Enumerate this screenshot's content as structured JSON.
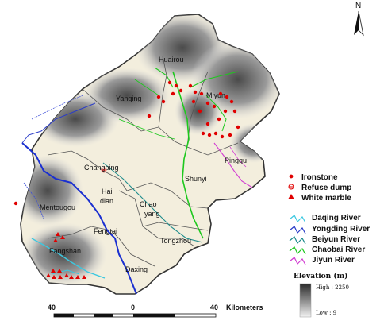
{
  "north_label": "N",
  "districts": [
    {
      "id": "huairou",
      "label": "Huairou"
    },
    {
      "id": "yanqing",
      "label": "Yanqing"
    },
    {
      "id": "miyun",
      "label": "Miyun"
    },
    {
      "id": "changping",
      "label": "Changping"
    },
    {
      "id": "pinggu",
      "label": "Pinggu"
    },
    {
      "id": "shunyi",
      "label": "Shunyi"
    },
    {
      "id": "haidian-1",
      "label": "Hai"
    },
    {
      "id": "haidian-2",
      "label": "dian"
    },
    {
      "id": "chaoyang-1",
      "label": "Chao"
    },
    {
      "id": "chaoyang-2",
      "label": "yang"
    },
    {
      "id": "mentougou",
      "label": "Mentougou"
    },
    {
      "id": "fengtai",
      "label": "Fengtai"
    },
    {
      "id": "tongzhou",
      "label": "Tongzhou"
    },
    {
      "id": "fangshan",
      "label": "Fangshan"
    },
    {
      "id": "daxing",
      "label": "Daxing"
    }
  ],
  "legend_points": [
    {
      "label": "Ironstone",
      "color": "#e00000",
      "symbol": "dot"
    },
    {
      "label": "Refuse dump",
      "color": "#e00000",
      "symbol": "circle-cross"
    },
    {
      "label": "White marble",
      "color": "#e00000",
      "symbol": "triangle"
    }
  ],
  "legend_rivers": [
    {
      "label": "Daqing River",
      "color": "#3cc8e0"
    },
    {
      "label": "Yongding River",
      "color": "#2a3cc8"
    },
    {
      "label": "Beiyun River",
      "color": "#1e8c8c"
    },
    {
      "label": "Chaobai River",
      "color": "#1ec81e"
    },
    {
      "label": "Jiyun River",
      "color": "#d23cd2"
    }
  ],
  "elevation": {
    "title": "Elevation (m)",
    "high": "High : 2250",
    "low": "Low : 9"
  },
  "scale": {
    "left": "40",
    "mid": "0",
    "right": "40",
    "unit": "Kilometers"
  }
}
